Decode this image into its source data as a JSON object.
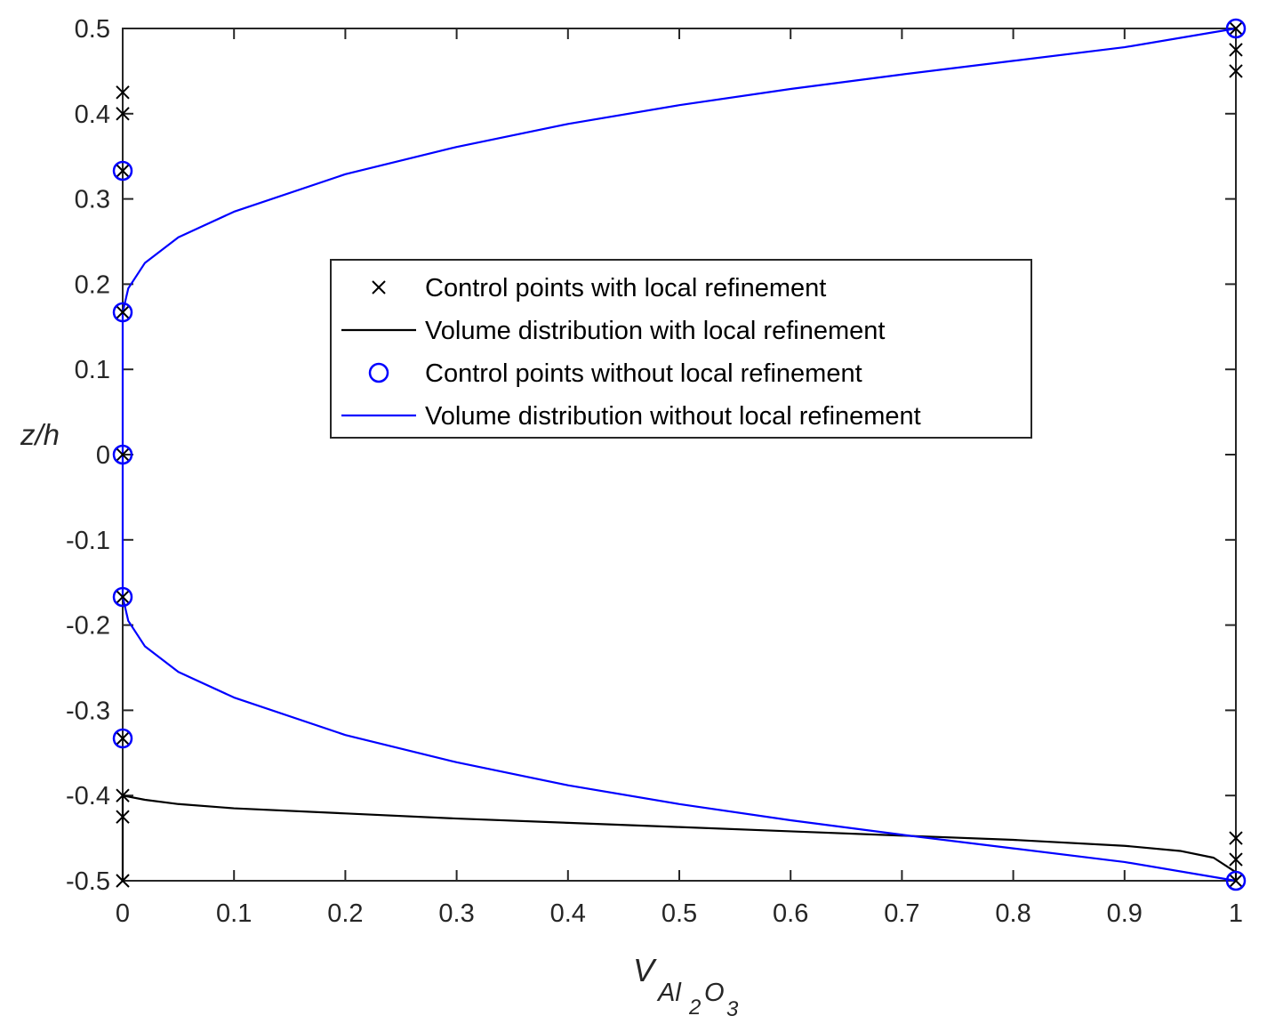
{
  "chart_data": {
    "type": "line",
    "xlabel": {
      "main": "V",
      "sub1": "Al",
      "sub2": "2",
      "sub3": "O",
      "sub4": "3"
    },
    "ylabel": "z/h",
    "xlim": [
      0,
      1
    ],
    "ylim": [
      -0.5,
      0.5
    ],
    "x_ticks": [
      0,
      0.1,
      0.2,
      0.3,
      0.4,
      0.5,
      0.6,
      0.7,
      0.8,
      0.9,
      1
    ],
    "x_tick_labels": [
      "0",
      "0.1",
      "0.2",
      "0.3",
      "0.4",
      "0.5",
      "0.6",
      "0.7",
      "0.8",
      "0.9",
      "1"
    ],
    "y_ticks": [
      -0.5,
      -0.4,
      -0.3,
      -0.2,
      -0.1,
      0,
      0.1,
      0.2,
      0.3,
      0.4,
      0.5
    ],
    "y_tick_labels": [
      "-0.5",
      "-0.4",
      "-0.3",
      "-0.2",
      "-0.1",
      "0",
      "0.1",
      "0.2",
      "0.3",
      "0.4",
      "0.5"
    ],
    "grid": false,
    "box": true,
    "legend_position": "center",
    "series": [
      {
        "name": "Control points with local refinement",
        "kind": "markers",
        "marker": "x",
        "color": "#000000",
        "points": [
          {
            "x": 0,
            "y": -0.5
          },
          {
            "x": 0,
            "y": -0.425
          },
          {
            "x": 0,
            "y": -0.4
          },
          {
            "x": 0,
            "y": -0.333
          },
          {
            "x": 0,
            "y": -0.167
          },
          {
            "x": 0,
            "y": 0
          },
          {
            "x": 0,
            "y": 0.167
          },
          {
            "x": 0,
            "y": 0.333
          },
          {
            "x": 0,
            "y": 0.4
          },
          {
            "x": 0,
            "y": 0.425
          },
          {
            "x": 1,
            "y": -0.5
          },
          {
            "x": 1,
            "y": -0.475
          },
          {
            "x": 1,
            "y": -0.45
          },
          {
            "x": 1,
            "y": 0.45
          },
          {
            "x": 1,
            "y": 0.475
          },
          {
            "x": 1,
            "y": 0.5
          }
        ]
      },
      {
        "name": "Volume distribution with local refinement",
        "kind": "line",
        "color": "#000000",
        "points": [
          {
            "x": 0,
            "y": -0.5
          },
          {
            "x": 0,
            "y": -0.4
          },
          {
            "x": 0.02,
            "y": -0.405
          },
          {
            "x": 0.05,
            "y": -0.41
          },
          {
            "x": 0.1,
            "y": -0.415
          },
          {
            "x": 0.2,
            "y": -0.421
          },
          {
            "x": 0.3,
            "y": -0.427
          },
          {
            "x": 0.4,
            "y": -0.432
          },
          {
            "x": 0.5,
            "y": -0.437
          },
          {
            "x": 0.6,
            "y": -0.442
          },
          {
            "x": 0.7,
            "y": -0.447
          },
          {
            "x": 0.8,
            "y": -0.452
          },
          {
            "x": 0.9,
            "y": -0.459
          },
          {
            "x": 0.95,
            "y": -0.465
          },
          {
            "x": 0.98,
            "y": -0.473
          },
          {
            "x": 1,
            "y": -0.49
          },
          {
            "x": 1,
            "y": -0.5
          }
        ]
      },
      {
        "name": "Control points without local refinement",
        "kind": "markers",
        "marker": "o",
        "color": "#0000ff",
        "points": [
          {
            "x": 0,
            "y": -0.333
          },
          {
            "x": 0,
            "y": -0.167
          },
          {
            "x": 0,
            "y": 0
          },
          {
            "x": 0,
            "y": 0.167
          },
          {
            "x": 0,
            "y": 0.333
          },
          {
            "x": 1,
            "y": -0.5
          },
          {
            "x": 1,
            "y": 0.5
          }
        ]
      },
      {
        "name": "Volume distribution without local refinement",
        "kind": "line",
        "color": "#0000ff",
        "points": [
          {
            "x": 1,
            "y": -0.5
          },
          {
            "x": 0.9,
            "y": -0.478
          },
          {
            "x": 0.8,
            "y": -0.462
          },
          {
            "x": 0.7,
            "y": -0.446
          },
          {
            "x": 0.6,
            "y": -0.429
          },
          {
            "x": 0.5,
            "y": -0.41
          },
          {
            "x": 0.4,
            "y": -0.388
          },
          {
            "x": 0.3,
            "y": -0.361
          },
          {
            "x": 0.2,
            "y": -0.329
          },
          {
            "x": 0.1,
            "y": -0.285
          },
          {
            "x": 0.05,
            "y": -0.255
          },
          {
            "x": 0.02,
            "y": -0.225
          },
          {
            "x": 0.005,
            "y": -0.195
          },
          {
            "x": 0,
            "y": -0.167
          },
          {
            "x": 0,
            "y": 0.167
          },
          {
            "x": 0.005,
            "y": 0.195
          },
          {
            "x": 0.02,
            "y": 0.225
          },
          {
            "x": 0.05,
            "y": 0.255
          },
          {
            "x": 0.1,
            "y": 0.285
          },
          {
            "x": 0.2,
            "y": 0.329
          },
          {
            "x": 0.3,
            "y": 0.361
          },
          {
            "x": 0.4,
            "y": 0.388
          },
          {
            "x": 0.5,
            "y": 0.41
          },
          {
            "x": 0.6,
            "y": 0.429
          },
          {
            "x": 0.7,
            "y": 0.446
          },
          {
            "x": 0.8,
            "y": 0.462
          },
          {
            "x": 0.9,
            "y": 0.478
          },
          {
            "x": 1,
            "y": 0.5
          }
        ]
      }
    ]
  }
}
